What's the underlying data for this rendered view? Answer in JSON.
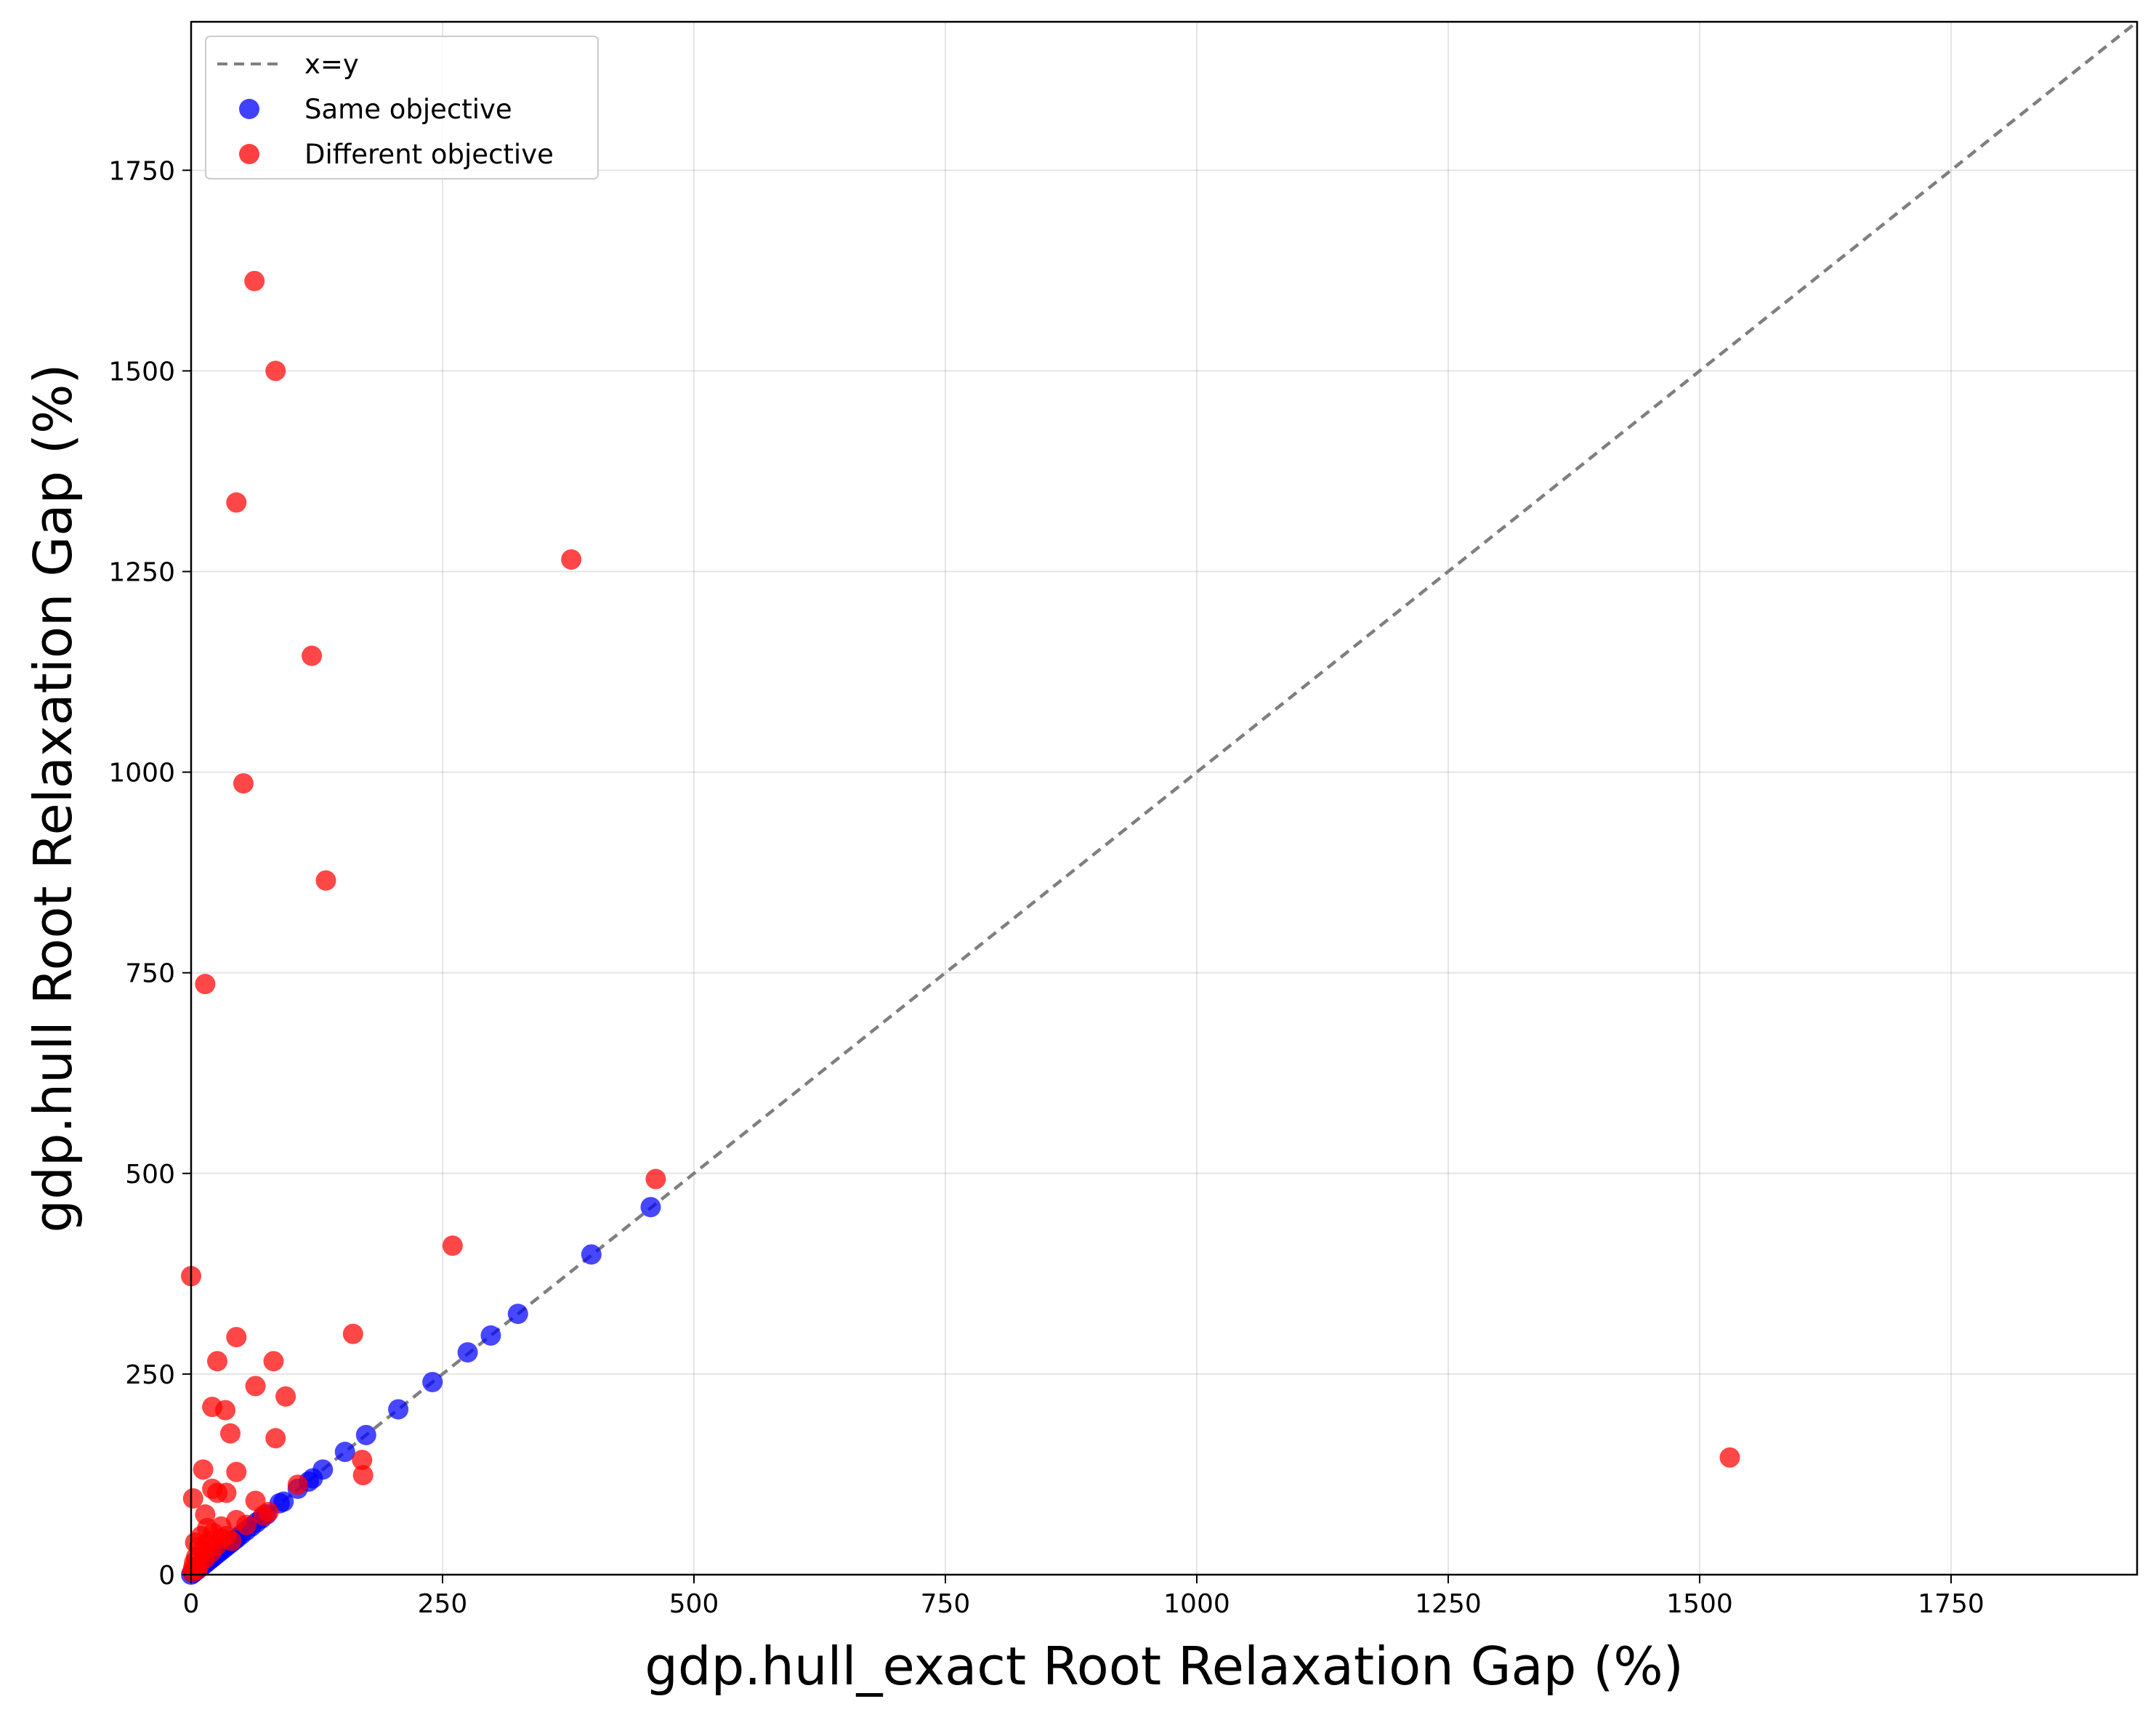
{
  "chart_data": {
    "type": "scatter",
    "title": "",
    "xlabel": "gdp.hull_exact Root Relaxation Gap (%)",
    "ylabel": "gdp.hull Root Relaxation Gap (%)",
    "xlim": [
      0,
      1935
    ],
    "ylim": [
      0,
      1935
    ],
    "xticks": [
      0,
      250,
      500,
      750,
      1000,
      1250,
      1500,
      1750
    ],
    "yticks": [
      0,
      250,
      500,
      750,
      1000,
      1250,
      1500,
      1750
    ],
    "xtick_labels": [
      "0",
      "250",
      "500",
      "750",
      "1000",
      "1250",
      "1500",
      "1750"
    ],
    "ytick_labels": [
      "0",
      "250",
      "500",
      "750",
      "1000",
      "1250",
      "1500",
      "1750"
    ],
    "grid": true,
    "legend_position": "top-left",
    "reference_line": {
      "name": "x=y",
      "color": "#7f7f7f",
      "style": "dashed",
      "points": [
        [
          0,
          0
        ],
        [
          1935,
          1935
        ]
      ]
    },
    "series": [
      {
        "name": "Same objective",
        "color": "#0000ff",
        "points": [
          [
            0,
            0
          ],
          [
            2,
            2
          ],
          [
            4,
            4
          ],
          [
            6,
            6
          ],
          [
            8,
            8
          ],
          [
            10,
            10
          ],
          [
            12,
            12
          ],
          [
            14,
            14
          ],
          [
            16,
            16
          ],
          [
            18,
            18
          ],
          [
            20,
            20
          ],
          [
            22,
            22
          ],
          [
            25,
            25
          ],
          [
            28,
            28
          ],
          [
            31,
            31
          ],
          [
            34,
            34
          ],
          [
            37,
            37
          ],
          [
            40,
            40
          ],
          [
            43,
            43
          ],
          [
            46,
            46
          ],
          [
            50,
            50
          ],
          [
            55,
            55
          ],
          [
            60,
            60
          ],
          [
            65,
            65
          ],
          [
            70,
            70
          ],
          [
            75,
            75
          ],
          [
            88,
            89
          ],
          [
            92,
            91
          ],
          [
            106,
            107
          ],
          [
            117,
            116
          ],
          [
            121,
            120
          ],
          [
            131,
            131
          ],
          [
            153,
            153
          ],
          [
            174,
            174
          ],
          [
            206,
            206
          ],
          [
            240,
            240
          ],
          [
            275,
            277
          ],
          [
            298,
            298
          ],
          [
            325,
            325
          ],
          [
            398,
            399
          ],
          [
            457,
            458
          ]
        ]
      },
      {
        "name": "Different objective",
        "color": "#ff0000",
        "points": [
          [
            63,
            1612
          ],
          [
            84,
            1500
          ],
          [
            45,
            1336
          ],
          [
            378,
            1265
          ],
          [
            120,
            1145
          ],
          [
            52,
            986
          ],
          [
            134,
            865
          ],
          [
            14,
            736
          ],
          [
            462,
            493
          ],
          [
            260,
            410
          ],
          [
            0,
            372
          ],
          [
            161,
            300
          ],
          [
            45,
            296
          ],
          [
            26,
            266
          ],
          [
            82,
            266
          ],
          [
            64,
            235
          ],
          [
            94,
            222
          ],
          [
            21,
            209
          ],
          [
            34,
            205
          ],
          [
            39,
            176
          ],
          [
            84,
            170
          ],
          [
            1530,
            146
          ],
          [
            170,
            143
          ],
          [
            12,
            131
          ],
          [
            45,
            128
          ],
          [
            171,
            124
          ],
          [
            106,
            112
          ],
          [
            21,
            107
          ],
          [
            26,
            102
          ],
          [
            35,
            102
          ],
          [
            2,
            95
          ],
          [
            64,
            92
          ],
          [
            77,
            78
          ],
          [
            72,
            74
          ],
          [
            14,
            75
          ],
          [
            45,
            68
          ],
          [
            30,
            60
          ],
          [
            16,
            58
          ],
          [
            22,
            52
          ],
          [
            10,
            48
          ],
          [
            30,
            45
          ],
          [
            18,
            42
          ],
          [
            4,
            40
          ],
          [
            8,
            35
          ],
          [
            25,
            36
          ],
          [
            12,
            30
          ],
          [
            20,
            28
          ],
          [
            5,
            22
          ],
          [
            14,
            20
          ],
          [
            3,
            15
          ],
          [
            8,
            12
          ],
          [
            2,
            8
          ],
          [
            6,
            6
          ],
          [
            1,
            3
          ],
          [
            35,
            48
          ],
          [
            55,
            62
          ],
          [
            40,
            42
          ]
        ]
      }
    ]
  }
}
